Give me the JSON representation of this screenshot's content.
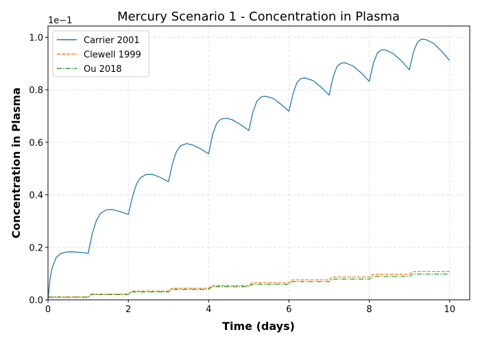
{
  "chart_data": {
    "type": "line",
    "title": "Mercury Scenario 1 - Concentration in Plasma",
    "xlabel": "Time (days)",
    "ylabel": "Concentration in Plasma",
    "y_offset_label": "1e−1",
    "xlim": [
      0,
      10.5
    ],
    "ylim": [
      0,
      1.043
    ],
    "grid": true,
    "legend_position": "top-left",
    "x_ticks": [
      0,
      2,
      4,
      6,
      8,
      10
    ],
    "x_tick_labels": [
      "0",
      "2",
      "4",
      "6",
      "8",
      "10"
    ],
    "y_ticks": [
      0,
      0.2,
      0.4,
      0.6,
      0.8,
      1.0
    ],
    "y_tick_labels": [
      "0.0",
      "0.2",
      "0.4",
      "0.6",
      "0.8",
      "1.0"
    ],
    "series": [
      {
        "name": "Carrier 2001",
        "color": "#1f77b4",
        "style": "solid",
        "x": [
          0,
          0.05,
          0.1,
          0.2,
          0.3,
          0.45,
          0.6,
          0.8,
          1.0,
          1.1,
          1.2,
          1.3,
          1.45,
          1.6,
          1.8,
          2.0,
          2.1,
          2.2,
          2.3,
          2.45,
          2.6,
          2.8,
          3.0,
          3.1,
          3.2,
          3.3,
          3.45,
          3.6,
          3.8,
          4.0,
          4.1,
          4.2,
          4.3,
          4.45,
          4.6,
          4.8,
          5.0,
          5.1,
          5.2,
          5.3,
          5.4,
          5.6,
          5.8,
          6.0,
          6.1,
          6.2,
          6.3,
          6.4,
          6.6,
          6.8,
          7.0,
          7.1,
          7.2,
          7.3,
          7.4,
          7.6,
          7.8,
          8.0,
          8.1,
          8.2,
          8.3,
          8.4,
          8.6,
          8.8,
          9.0,
          9.1,
          9.2,
          9.3,
          9.4,
          9.6,
          9.8,
          10.0
        ],
        "y": [
          0,
          0.08,
          0.12,
          0.16,
          0.175,
          0.182,
          0.183,
          0.181,
          0.177,
          0.25,
          0.3,
          0.328,
          0.343,
          0.344,
          0.336,
          0.325,
          0.39,
          0.44,
          0.465,
          0.478,
          0.478,
          0.466,
          0.45,
          0.52,
          0.565,
          0.587,
          0.595,
          0.59,
          0.575,
          0.556,
          0.63,
          0.672,
          0.688,
          0.692,
          0.685,
          0.667,
          0.645,
          0.715,
          0.756,
          0.772,
          0.776,
          0.768,
          0.745,
          0.718,
          0.785,
          0.828,
          0.843,
          0.845,
          0.835,
          0.81,
          0.78,
          0.85,
          0.89,
          0.902,
          0.903,
          0.89,
          0.864,
          0.832,
          0.9,
          0.94,
          0.952,
          0.952,
          0.938,
          0.91,
          0.876,
          0.945,
          0.982,
          0.993,
          0.992,
          0.977,
          0.947,
          0.912
        ]
      },
      {
        "name": "Clewell 1999",
        "color": "#ff7f0e",
        "style": "dashed",
        "daily_levels": [
          0.011,
          0.022,
          0.033,
          0.044,
          0.054,
          0.065,
          0.076,
          0.087,
          0.097,
          0.108
        ]
      },
      {
        "name": "Ou 2018",
        "color": "#2ca02c",
        "style": "dashdot",
        "daily_levels": [
          0.01,
          0.02,
          0.03,
          0.04,
          0.05,
          0.059,
          0.069,
          0.079,
          0.089,
          0.098
        ]
      }
    ]
  }
}
